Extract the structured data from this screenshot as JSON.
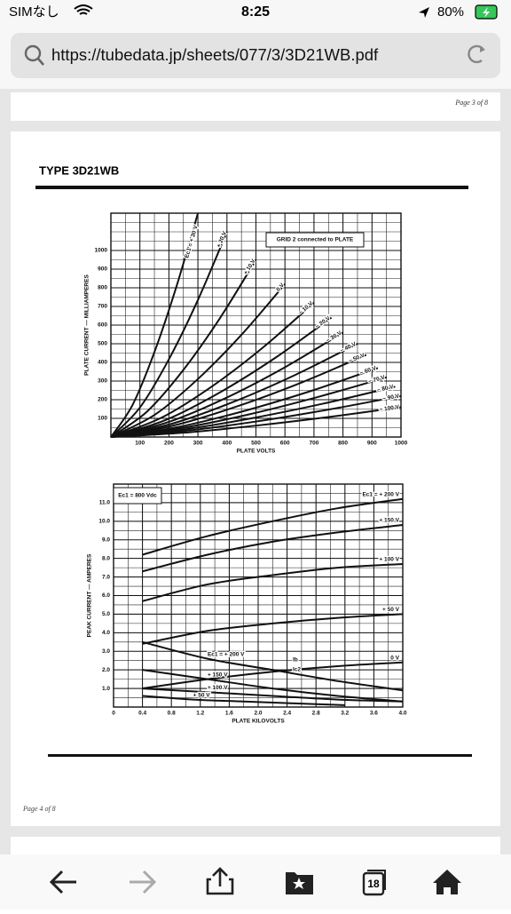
{
  "status_bar": {
    "carrier": "SIMなし",
    "time": "8:25",
    "battery": "80%"
  },
  "url_bar": {
    "url": "https://tubedata.jp/sheets/077/3/3D21WB.pdf"
  },
  "pages": [
    {
      "footer": "Page 3 of 8"
    },
    {
      "title": "TYPE 3D21WB",
      "footer": "Page 4 of 8"
    }
  ],
  "charts": [
    {
      "type": "line",
      "annotation": "GRID 2 connected to PLATE",
      "x_label": "PLATE VOLTS",
      "y_label": "PLATE CURRENT — MILLIAMPERES",
      "xlim": [
        0,
        1000
      ],
      "ylim": [
        0,
        1200
      ],
      "xticks": [
        100,
        200,
        300,
        400,
        500,
        600,
        700,
        800,
        900,
        1000
      ],
      "yticks": [
        100,
        200,
        300,
        400,
        500,
        600,
        700,
        800,
        900,
        1000
      ],
      "series": [
        {
          "name": "Ec1 = + 30 V",
          "color": "#111",
          "x": [
            0,
            75,
            150,
            225,
            300
          ],
          "values": [
            0,
            173,
            455,
            802,
            1200
          ]
        },
        {
          "name": "+ 20 V",
          "color": "#111",
          "x": [
            0,
            100,
            200,
            300,
            400
          ],
          "values": [
            0,
            158,
            417,
            735,
            1100
          ]
        },
        {
          "name": "+ 10 V",
          "color": "#111",
          "x": [
            0,
            125,
            250,
            375,
            500
          ],
          "values": [
            0,
            137,
            360,
            635,
            950
          ]
        },
        {
          "name": "0 V",
          "color": "#111",
          "x": [
            0,
            150,
            300,
            450,
            600
          ],
          "values": [
            0,
            118,
            311,
            548,
            820
          ]
        },
        {
          "name": "− 10 V",
          "color": "#111",
          "x": [
            0,
            175,
            350,
            525,
            700
          ],
          "values": [
            0,
            104,
            273,
            481,
            720
          ]
        },
        {
          "name": "− 20 V",
          "color": "#111",
          "x": [
            0,
            190,
            380,
            570,
            760
          ],
          "values": [
            0,
            92,
            243,
            428,
            640
          ]
        },
        {
          "name": "− 30 V",
          "color": "#111",
          "x": [
            0,
            200,
            400,
            600,
            800
          ],
          "values": [
            0,
            81,
            212,
            374,
            560
          ]
        },
        {
          "name": "− 40 V",
          "color": "#111",
          "x": [
            0,
            212,
            425,
            637,
            850
          ],
          "values": [
            0,
            72,
            190,
            334,
            500
          ]
        },
        {
          "name": "− 50 V",
          "color": "#111",
          "x": [
            0,
            220,
            440,
            660,
            880
          ],
          "values": [
            0,
            63,
            167,
            294,
            440
          ]
        },
        {
          "name": "− 60 V",
          "color": "#111",
          "x": [
            0,
            230,
            460,
            690,
            920
          ],
          "values": [
            0,
            53,
            140,
            247,
            370
          ]
        },
        {
          "name": "− 70 V",
          "color": "#111",
          "x": [
            0,
            237,
            475,
            712,
            950
          ],
          "values": [
            0,
            46,
            121,
            214,
            320
          ]
        },
        {
          "name": "− 80 V",
          "color": "#111",
          "x": [
            0,
            245,
            490,
            735,
            980
          ],
          "values": [
            0,
            39,
            102,
            180,
            270
          ]
        },
        {
          "name": "− 90 V",
          "color": "#111",
          "x": [
            0,
            250,
            500,
            750,
            1000
          ],
          "values": [
            0,
            32,
            83,
            147,
            220
          ]
        },
        {
          "name": "− 100 V",
          "color": "#111",
          "x": [
            0,
            250,
            500,
            750,
            1000
          ],
          "values": [
            0,
            23,
            61,
            107,
            160
          ]
        }
      ]
    },
    {
      "type": "line",
      "annotation": "Ec1 = 800 Vdc",
      "x_label": "PLATE KILOVOLTS",
      "y_label": "PEAK CURRENT — AMPERES",
      "labels": [
        "Ib",
        "Ic2"
      ],
      "xlim": [
        0,
        4
      ],
      "ylim": [
        0,
        12
      ],
      "xticks": [
        0,
        0.4,
        0.8,
        1.2,
        1.6,
        {
          "value": 2,
          "label": "2.0"
        },
        2.4,
        2.8,
        3.2,
        3.6,
        {
          "value": 4,
          "label": "4.0"
        }
      ],
      "yticks": [
        {
          "value": 1,
          "label": "1.0"
        },
        {
          "value": 2,
          "label": "2.0"
        },
        {
          "value": 3,
          "label": "3.0"
        },
        {
          "value": 4,
          "label": "4.0"
        },
        {
          "value": 5,
          "label": "5.0"
        },
        {
          "value": 6,
          "label": "6.0"
        },
        {
          "value": 7,
          "label": "7.0"
        },
        {
          "value": 8,
          "label": "8.0"
        },
        {
          "value": 9,
          "label": "9.0"
        },
        {
          "value": 10,
          "label": "10.0"
        },
        {
          "value": 11,
          "label": "11.0"
        }
      ],
      "series": [
        {
          "name": "Ec1 = + 200 V",
          "color": "#111",
          "x": [
            0.4,
            1.3,
            2.2,
            3.1,
            4.0
          ],
          "values": [
            8.2,
            9.2,
            10.0,
            10.7,
            11.2
          ]
        },
        {
          "name": "+ 150 V",
          "color": "#111",
          "x": [
            0.4,
            1.3,
            2.2,
            3.1,
            4.0
          ],
          "values": [
            7.3,
            8.2,
            8.9,
            9.4,
            9.8
          ]
        },
        {
          "name": "+ 100 V",
          "color": "#111",
          "x": [
            0.4,
            1.3,
            2.2,
            3.1,
            4.0
          ],
          "values": [
            5.7,
            6.6,
            7.1,
            7.5,
            7.7
          ]
        },
        {
          "name": "+ 50 V",
          "color": "#111",
          "x": [
            0.4,
            1.3,
            2.2,
            3.1,
            4.0
          ],
          "values": [
            3.4,
            4.1,
            4.5,
            4.8,
            5.0
          ]
        },
        {
          "name": "0 V",
          "color": "#111",
          "x": [
            0.4,
            1.3,
            2.2,
            3.1,
            4.0
          ],
          "values": [
            1.0,
            1.5,
            1.9,
            2.2,
            2.4
          ]
        },
        {
          "name": "Ec1 = + 200 V",
          "color": "#111",
          "x": [
            0.4,
            1.3,
            2.2,
            3.1,
            4.0
          ],
          "values": [
            3.5,
            2.6,
            2.0,
            1.4,
            0.9
          ]
        },
        {
          "name": "+ 150 V",
          "color": "#111",
          "x": [
            0.4,
            1.3,
            2.2,
            3.1,
            4.0
          ],
          "values": [
            2.0,
            1.5,
            1.0,
            0.6,
            0.3
          ]
        },
        {
          "name": "+ 100 V",
          "color": "#111",
          "x": [
            0.4,
            1.3,
            2.2,
            3.1,
            4.0
          ],
          "values": [
            1.0,
            0.8,
            0.6,
            0.4,
            0.3
          ]
        },
        {
          "name": "+ 50 V",
          "color": "#111",
          "x": [
            0.4,
            1.1,
            1.8,
            2.5,
            3.2
          ],
          "values": [
            0.6,
            0.4,
            0.3,
            0.2,
            0.1
          ]
        }
      ]
    }
  ],
  "toolbar": {
    "tabs": "18"
  }
}
